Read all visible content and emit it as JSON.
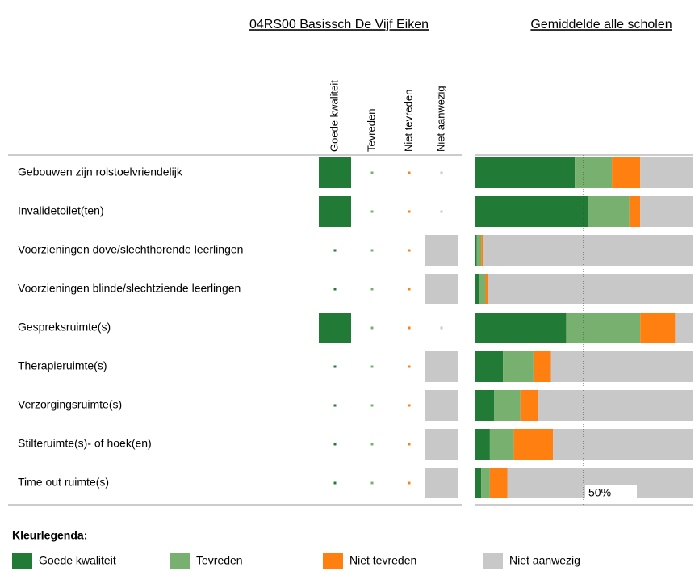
{
  "chart_data": [
    {
      "type": "matrix",
      "title": "04RS00 Basissch De Vijf Eiken",
      "categories": [
        "Gebouwen zijn rolstoelvriendelijk",
        "Invalidetoilet(ten)",
        "Voorzieningen dove/slechthorende leerlingen",
        "Voorzieningen blinde/slechtziende leerlingen",
        "Gespreksruimte(s)",
        "Therapieruimte(s)",
        "Verzorgingsruimte(s)",
        "Stilteruimte(s)- of hoek(en)",
        "Time out ruimte(s)"
      ],
      "series": [
        {
          "name": "Goede kwaliteit",
          "color": "#217a35",
          "values": [
            100,
            100,
            0,
            0,
            100,
            0,
            0,
            0,
            0
          ]
        },
        {
          "name": "Tevreden",
          "color": "#78b070",
          "values": [
            0,
            0,
            0,
            0,
            0,
            0,
            0,
            0,
            0
          ]
        },
        {
          "name": "Niet tevreden",
          "color": "#ff8010",
          "values": [
            0,
            0,
            0,
            0,
            0,
            0,
            0,
            0,
            0
          ]
        },
        {
          "name": "Niet aanwezig",
          "color": "#c8c8c8",
          "values": [
            0,
            0,
            100,
            100,
            0,
            100,
            100,
            100,
            100
          ]
        }
      ]
    },
    {
      "type": "stacked_bar",
      "title": "Gemiddelde alle scholen",
      "legend_title": "Kleurlegenda:",
      "series": [
        {
          "name": "Goede kwaliteit",
          "color": "#217a35",
          "values": [
            46,
            52,
            1,
            2,
            42,
            13,
            9,
            7,
            3
          ]
        },
        {
          "name": "Tevreden",
          "color": "#78b070",
          "values": [
            17,
            19,
            2,
            3,
            34,
            14,
            12,
            11,
            4
          ]
        },
        {
          "name": "Niet tevreden",
          "color": "#ff8010",
          "values": [
            13,
            5,
            1,
            1,
            16,
            8,
            8,
            18,
            8
          ]
        },
        {
          "name": "Niet aanwezig",
          "color": "#c8c8c8",
          "values": [
            24,
            24,
            96,
            94,
            8,
            65,
            71,
            64,
            85
          ]
        }
      ],
      "xlim": [
        0,
        100
      ],
      "gridlines": [
        25,
        50,
        75
      ],
      "xticks": [
        {
          "value": 50,
          "label": "50%"
        }
      ]
    }
  ]
}
